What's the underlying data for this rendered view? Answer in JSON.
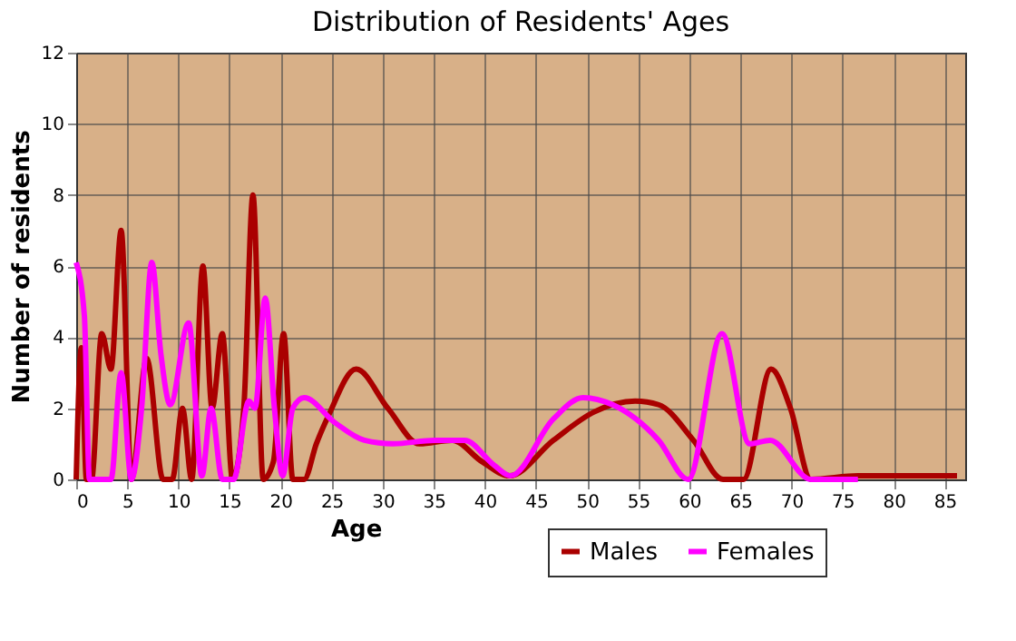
{
  "chart_data": {
    "type": "line",
    "title": "Distribution of Residents' Ages",
    "xlabel": "Age",
    "ylabel": "Number of residents",
    "xlim": [
      0,
      87
    ],
    "xticks": [
      0,
      5,
      10,
      15,
      20,
      25,
      30,
      35,
      40,
      45,
      50,
      55,
      60,
      65,
      70,
      75,
      80,
      85
    ],
    "ylim": [
      0,
      12
    ],
    "yticks": [
      0,
      2,
      4,
      6,
      8,
      10,
      12
    ],
    "grid": true,
    "legend": "bottom",
    "marker": "none",
    "line_style": "solid",
    "series": [
      {
        "name": "Males",
        "color": "#aa0000",
        "x": [
          0,
          0.5,
          1,
          1.5,
          2.5,
          3.4,
          4.4,
          5.4,
          6.9,
          8.5,
          9.4,
          10.4,
          11.3,
          12.4,
          13.3,
          14.3,
          15.3,
          16.4,
          17.3,
          18.3,
          19.3,
          20.3,
          21.2,
          22.3,
          23.5,
          24.7,
          27.4,
          30.5,
          33.6,
          36.8,
          39.7,
          42.4,
          46.7,
          50.7,
          54.7,
          57,
          60.4,
          63.3,
          65.3,
          68,
          69.9,
          71.9,
          76.5,
          86.2
        ],
        "values": [
          0,
          3.7,
          0,
          0,
          4.1,
          3.1,
          7,
          0,
          3.4,
          0,
          0,
          2,
          0,
          6,
          2,
          4.1,
          0,
          2,
          8,
          0,
          0.5,
          4.1,
          0,
          0,
          1,
          1.8,
          3.1,
          2,
          1,
          1.1,
          0.5,
          0.1,
          1.1,
          1.9,
          2.2,
          2.1,
          1.1,
          0,
          0,
          3.1,
          2,
          0,
          0.1,
          0.1
        ]
      },
      {
        "name": "Females",
        "color": "#ff00ff",
        "x": [
          0,
          0.8,
          1.3,
          2.4,
          3.4,
          4.4,
          5.4,
          6.4,
          7.4,
          8.3,
          9.2,
          11,
          12.3,
          13.2,
          14.3,
          15.4,
          16.9,
          17.5,
          18.5,
          19.4,
          20.2,
          21.2,
          22.3,
          25.3,
          28.2,
          31,
          35.1,
          38,
          40.9,
          42.5,
          46.7,
          49.6,
          52.5,
          57,
          59.9,
          63.2,
          65.9,
          67.9,
          71.9,
          76.5
        ],
        "values": [
          6.1,
          4.6,
          0,
          0,
          0,
          3,
          0,
          2,
          6.1,
          3.5,
          2.1,
          4.4,
          0.1,
          2,
          0,
          0,
          2.2,
          2,
          5.1,
          2,
          0.1,
          2,
          2.3,
          1.6,
          1.1,
          1,
          1.1,
          1.1,
          0.4,
          0.1,
          1.7,
          2.3,
          2.1,
          1.1,
          0,
          4.1,
          1,
          1.1,
          0,
          0
        ]
      }
    ]
  }
}
